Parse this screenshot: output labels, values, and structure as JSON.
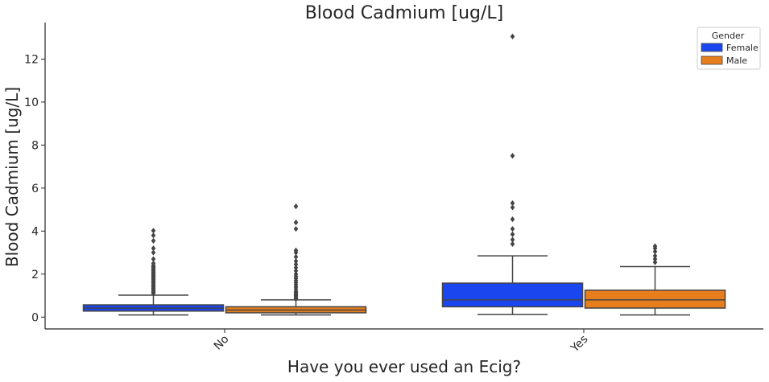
{
  "chart_data": {
    "type": "box",
    "title": "Blood Cadmium [ug/L]",
    "xlabel": "Have you ever used an Ecig?",
    "ylabel": "Blood Cadmium [ug/L]",
    "ylim": [
      -0.55,
      13.7
    ],
    "yticks": [
      0,
      2,
      4,
      6,
      8,
      10,
      12
    ],
    "categories": [
      "No",
      "Yes"
    ],
    "grid": false,
    "legend": {
      "title": "Gender",
      "position": "top-right"
    },
    "series": [
      {
        "name": "Female",
        "color": "#1a46f0",
        "boxes": [
          {
            "category": "No",
            "q1": 0.28,
            "median": 0.42,
            "q3": 0.57,
            "whisker_low": 0.1,
            "whisker_high": 1.02,
            "outliers": [
              1.1,
              1.15,
              1.2,
              1.25,
              1.3,
              1.35,
              1.4,
              1.45,
              1.5,
              1.55,
              1.6,
              1.65,
              1.7,
              1.75,
              1.8,
              1.85,
              1.9,
              1.95,
              2.0,
              2.05,
              2.1,
              2.15,
              2.2,
              2.25,
              2.3,
              2.35,
              2.4,
              2.5,
              2.7,
              3.0,
              3.2,
              3.55,
              3.8,
              4.02
            ]
          },
          {
            "category": "Yes",
            "q1": 0.48,
            "median": 0.8,
            "q3": 1.58,
            "whisker_low": 0.12,
            "whisker_high": 2.85,
            "outliers": [
              3.4,
              3.6,
              3.85,
              4.1,
              4.55,
              5.1,
              5.3,
              7.5,
              13.05
            ]
          }
        ]
      },
      {
        "name": "Male",
        "color": "#e67e1e",
        "boxes": [
          {
            "category": "No",
            "q1": 0.2,
            "median": 0.33,
            "q3": 0.48,
            "whisker_low": 0.1,
            "whisker_high": 0.8,
            "outliers": [
              0.85,
              0.9,
              0.95,
              1.0,
              1.05,
              1.1,
              1.15,
              1.2,
              1.3,
              1.4,
              1.5,
              1.6,
              1.7,
              1.8,
              1.9,
              2.0,
              2.15,
              2.3,
              2.45,
              2.6,
              2.8,
              3.0,
              3.1,
              4.1,
              4.4,
              5.15
            ]
          },
          {
            "category": "Yes",
            "q1": 0.42,
            "median": 0.8,
            "q3": 1.25,
            "whisker_low": 0.1,
            "whisker_high": 2.35,
            "outliers": [
              2.55,
              2.7,
              2.85,
              3.05,
              3.2,
              3.3
            ]
          }
        ]
      }
    ]
  }
}
